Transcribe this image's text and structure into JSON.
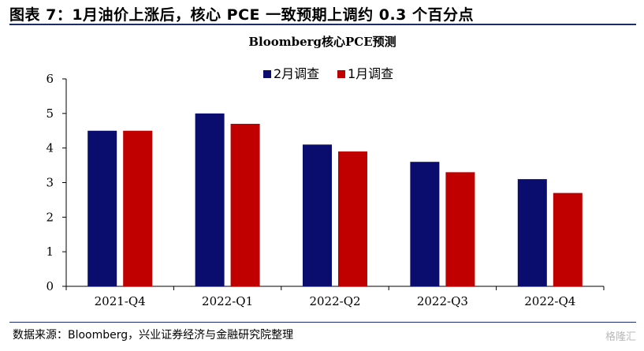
{
  "figure": {
    "title": "图表 7：1月油价上涨后，核心 PCE 一致预期上调约 0.3 个百分点",
    "source": "数据来源：Bloomberg，兴业证券经济与金融研究院整理",
    "watermark": "格隆汇"
  },
  "chart_data": {
    "type": "bar",
    "title": "Bloomberg核心PCE预测",
    "categories": [
      "2021-Q4",
      "2022-Q1",
      "2022-Q2",
      "2022-Q3",
      "2022-Q4"
    ],
    "series": [
      {
        "name": "2月调查",
        "values": [
          4.5,
          5.0,
          4.1,
          3.6,
          3.1
        ],
        "color": "#0b0d6e"
      },
      {
        "name": "1月调查",
        "values": [
          4.5,
          4.7,
          3.9,
          3.3,
          2.7
        ],
        "color": "#c00000"
      }
    ],
    "ylim": [
      0,
      6
    ],
    "yticks": [
      0,
      1,
      2,
      3,
      4,
      5,
      6
    ],
    "grid": false,
    "legend": "top-right"
  }
}
